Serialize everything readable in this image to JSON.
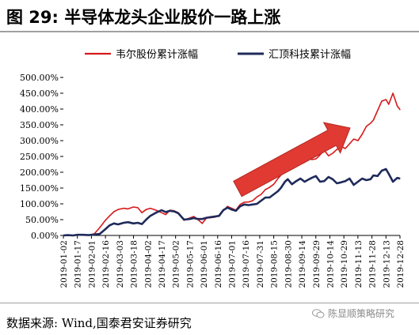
{
  "header": {
    "title": "图 29:  半导体龙头企业股价一路上涨"
  },
  "footer": {
    "source": "数据来源:  Wind,国泰君安证券研究",
    "watermark": "陈显顺策略研究"
  },
  "colors": {
    "series_red": "#d7191c",
    "series_navy": "#1f2a5a",
    "arrow": "#e03a32"
  },
  "chart_data": {
    "type": "line",
    "ylim": [
      0,
      5
    ],
    "yticks": [
      0,
      0.5,
      1.0,
      1.5,
      2.0,
      2.5,
      3.0,
      3.5,
      4.0,
      4.5,
      5.0
    ],
    "ytick_labels": [
      "0.00%",
      "50.00%",
      "100.00%",
      "150.00%",
      "200.00%",
      "250.00%",
      "300.00%",
      "350.00%",
      "400.00%",
      "450.00%",
      "500.00%"
    ],
    "xtick_labels": [
      "2019-01-02",
      "2019-01-17",
      "2019-02-01",
      "2019-02-16",
      "2019-03-03",
      "2019-03-18",
      "2019-04-02",
      "2019-04-17",
      "2019-05-02",
      "2019-05-17",
      "2019-06-01",
      "2019-06-16",
      "2019-07-01",
      "2019-07-16",
      "2019-07-31",
      "2019-08-15",
      "2019-08-30",
      "2019-09-14",
      "2019-09-29",
      "2019-10-14",
      "2019-10-29",
      "2019-11-13",
      "2019-11-28",
      "2019-12-13",
      "2019-12-28"
    ],
    "legend_position": "top",
    "annotation": "upward-arrow",
    "series": [
      {
        "name": "韦尔股份累计涨幅",
        "color": "#d7191c",
        "x": [
          0,
          0.3,
          0.7,
          1.0,
          1.4,
          1.8,
          2.2,
          2.6,
          3.0,
          3.3,
          3.6,
          3.9,
          4.3,
          4.6,
          5.0,
          5.3,
          5.6,
          5.9,
          6.2,
          6.6,
          7.0,
          7.3,
          7.6,
          7.9,
          8.2,
          8.6,
          9.0,
          9.3,
          9.6,
          9.9,
          10.2,
          10.5,
          10.8,
          11.1,
          11.4,
          11.7,
          12.0,
          12.3,
          12.6,
          12.9,
          13.2,
          13.5,
          13.8,
          14.1,
          14.4,
          14.7,
          15.0,
          15.3,
          15.5,
          15.8,
          16.0,
          16.3,
          16.6,
          16.9,
          17.2,
          17.4,
          17.7,
          18.0,
          18.3,
          18.6,
          18.9,
          19.2,
          19.5,
          19.8,
          20.1,
          20.4,
          20.7,
          21.0,
          21.3,
          21.6,
          21.9,
          22.1,
          22.4,
          22.7,
          23.0,
          23.2,
          23.5,
          23.8,
          24.0
        ],
        "y": [
          0.0,
          0.01,
          0.0,
          0.03,
          0.02,
          0.01,
          0.05,
          0.25,
          0.48,
          0.62,
          0.75,
          0.82,
          0.86,
          0.84,
          0.9,
          0.88,
          0.72,
          0.82,
          0.86,
          0.8,
          0.72,
          0.66,
          0.8,
          0.78,
          0.72,
          0.48,
          0.55,
          0.6,
          0.5,
          0.38,
          0.55,
          0.56,
          0.58,
          0.62,
          0.78,
          0.92,
          0.86,
          0.8,
          0.98,
          1.05,
          1.06,
          1.1,
          1.22,
          1.3,
          1.45,
          1.52,
          1.62,
          1.8,
          1.9,
          2.05,
          2.2,
          2.45,
          2.6,
          2.75,
          2.9,
          2.7,
          2.4,
          2.42,
          2.55,
          2.7,
          2.52,
          2.6,
          2.72,
          2.82,
          2.75,
          2.9,
          3.05,
          3.0,
          3.2,
          3.45,
          3.55,
          3.65,
          3.95,
          4.25,
          4.3,
          4.15,
          4.5,
          4.1,
          3.98
        ]
      },
      {
        "name": "汇顶科技累计涨幅",
        "color": "#1f2a5a",
        "x": [
          0,
          0.3,
          0.7,
          1.0,
          1.4,
          1.8,
          2.2,
          2.6,
          3.0,
          3.3,
          3.6,
          3.9,
          4.3,
          4.6,
          5.0,
          5.3,
          5.6,
          5.9,
          6.2,
          6.6,
          7.0,
          7.3,
          7.6,
          7.9,
          8.2,
          8.6,
          9.0,
          9.3,
          9.6,
          9.9,
          10.2,
          10.5,
          10.8,
          11.1,
          11.4,
          11.7,
          12.0,
          12.3,
          12.6,
          12.9,
          13.2,
          13.5,
          13.8,
          14.1,
          14.4,
          14.7,
          15.0,
          15.3,
          15.5,
          15.8,
          16.0,
          16.3,
          16.6,
          16.9,
          17.2,
          17.4,
          17.7,
          18.0,
          18.3,
          18.6,
          18.9,
          19.2,
          19.5,
          19.8,
          20.1,
          20.4,
          20.7,
          21.0,
          21.3,
          21.6,
          21.9,
          22.1,
          22.4,
          22.7,
          23.0,
          23.2,
          23.5,
          23.8,
          24.0
        ],
        "y": [
          0.0,
          0.01,
          0.0,
          0.02,
          0.02,
          0.01,
          0.03,
          0.05,
          0.2,
          0.32,
          0.38,
          0.35,
          0.4,
          0.42,
          0.38,
          0.4,
          0.36,
          0.5,
          0.62,
          0.72,
          0.8,
          0.74,
          0.78,
          0.76,
          0.7,
          0.5,
          0.52,
          0.55,
          0.52,
          0.52,
          0.56,
          0.58,
          0.6,
          0.62,
          0.8,
          0.88,
          0.82,
          0.78,
          0.92,
          0.98,
          0.96,
          0.98,
          1.0,
          1.1,
          1.2,
          1.2,
          1.3,
          1.4,
          1.5,
          1.7,
          1.78,
          1.62,
          1.72,
          1.8,
          1.7,
          1.75,
          1.82,
          1.88,
          1.7,
          1.72,
          1.85,
          1.78,
          1.65,
          1.68,
          1.72,
          1.8,
          1.6,
          1.7,
          1.8,
          1.75,
          1.78,
          1.9,
          1.88,
          2.05,
          2.1,
          1.95,
          1.7,
          1.82,
          1.8
        ]
      }
    ]
  }
}
